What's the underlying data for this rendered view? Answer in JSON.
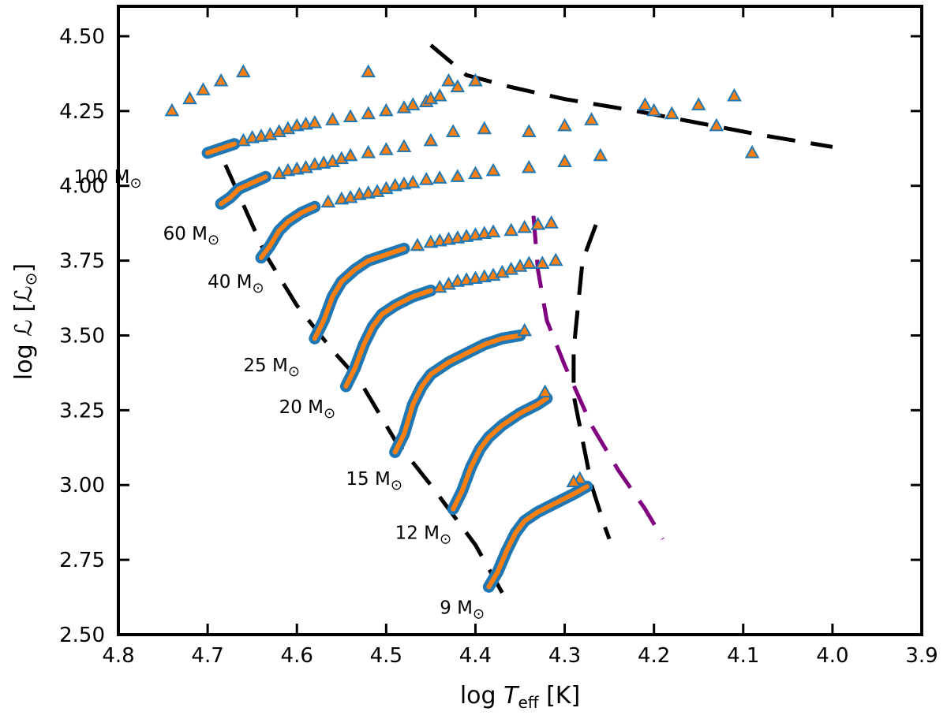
{
  "chart_data": {
    "type": "scatter",
    "title": "",
    "xlabel": {
      "main": "log ",
      "var": "T",
      "sub": "eff",
      "unit": " [K]"
    },
    "ylabel": {
      "main": "log ",
      "var": "ℒ",
      "unit_open": " [",
      "unit_var": "ℒ",
      "sub": "⊙",
      "unit_close": "]"
    },
    "xlim": [
      4.8,
      3.9
    ],
    "ylim": [
      2.5,
      4.6
    ],
    "x_ticks": [
      4.8,
      4.7,
      4.6,
      4.5,
      4.4,
      4.3,
      4.2,
      4.1,
      4.0,
      3.9
    ],
    "x_tick_labels": [
      "4.8",
      "4.7",
      "4.6",
      "4.5",
      "4.4",
      "4.3",
      "4.2",
      "4.1",
      "4.0",
      "3.9"
    ],
    "y_ticks": [
      2.5,
      2.75,
      3.0,
      3.25,
      3.5,
      3.75,
      4.0,
      4.25,
      4.5
    ],
    "y_tick_labels": [
      "2.50",
      "2.75",
      "3.00",
      "3.25",
      "3.50",
      "3.75",
      "4.00",
      "4.25",
      "4.50"
    ],
    "grid": false,
    "legend": "none",
    "colors": {
      "track_blue": "#1f77b4",
      "track_orange": "#ff7f0e",
      "boundary_black": "#000000",
      "boundary_purple": "#800080"
    },
    "tracks": [
      {
        "label": "9 M",
        "label_sub": "⊙",
        "dense": [
          [
            4.385,
            2.66
          ],
          [
            4.375,
            2.71
          ],
          [
            4.365,
            2.78
          ],
          [
            4.355,
            2.84
          ],
          [
            4.345,
            2.88
          ],
          [
            4.33,
            2.91
          ],
          [
            4.31,
            2.94
          ],
          [
            4.29,
            2.97
          ],
          [
            4.275,
            2.995
          ]
        ],
        "sparse": [
          [
            4.283,
            3.02
          ],
          [
            4.29,
            3.01
          ]
        ],
        "label_pos": [
          4.44,
          2.57
        ]
      },
      {
        "label": "12 M",
        "label_sub": "⊙",
        "dense": [
          [
            4.425,
            2.92
          ],
          [
            4.415,
            2.98
          ],
          [
            4.405,
            3.06
          ],
          [
            4.395,
            3.12
          ],
          [
            4.385,
            3.16
          ],
          [
            4.37,
            3.2
          ],
          [
            4.35,
            3.24
          ],
          [
            4.33,
            3.27
          ],
          [
            4.32,
            3.29
          ]
        ],
        "sparse": [
          [
            4.322,
            3.31
          ]
        ],
        "label_pos": [
          4.49,
          2.82
        ]
      },
      {
        "label": "15 M",
        "label_sub": "⊙",
        "dense": [
          [
            4.49,
            3.11
          ],
          [
            4.48,
            3.17
          ],
          [
            4.47,
            3.27
          ],
          [
            4.46,
            3.33
          ],
          [
            4.45,
            3.37
          ],
          [
            4.43,
            3.41
          ],
          [
            4.41,
            3.44
          ],
          [
            4.39,
            3.47
          ],
          [
            4.37,
            3.49
          ],
          [
            4.35,
            3.5
          ]
        ],
        "sparse": [
          [
            4.345,
            3.515
          ]
        ],
        "label_pos": [
          4.545,
          3.0
        ]
      },
      {
        "label": "20 M",
        "label_sub": "⊙",
        "dense": [
          [
            4.545,
            3.33
          ],
          [
            4.535,
            3.39
          ],
          [
            4.525,
            3.47
          ],
          [
            4.515,
            3.53
          ],
          [
            4.505,
            3.57
          ],
          [
            4.49,
            3.6
          ],
          [
            4.47,
            3.63
          ],
          [
            4.45,
            3.65
          ]
        ],
        "sparse": [
          [
            4.44,
            3.66
          ],
          [
            4.43,
            3.67
          ],
          [
            4.42,
            3.68
          ],
          [
            4.41,
            3.685
          ],
          [
            4.4,
            3.69
          ],
          [
            4.39,
            3.695
          ],
          [
            4.38,
            3.7
          ],
          [
            4.37,
            3.71
          ],
          [
            4.36,
            3.72
          ],
          [
            4.35,
            3.73
          ],
          [
            4.34,
            3.74
          ],
          [
            4.325,
            3.74
          ],
          [
            4.31,
            3.75
          ]
        ],
        "label_pos": [
          4.62,
          3.24
        ]
      },
      {
        "label": "25 M",
        "label_sub": "⊙",
        "dense": [
          [
            4.58,
            3.49
          ],
          [
            4.57,
            3.55
          ],
          [
            4.56,
            3.63
          ],
          [
            4.55,
            3.68
          ],
          [
            4.535,
            3.72
          ],
          [
            4.52,
            3.75
          ],
          [
            4.5,
            3.77
          ],
          [
            4.48,
            3.79
          ]
        ],
        "sparse": [
          [
            4.465,
            3.8
          ],
          [
            4.45,
            3.81
          ],
          [
            4.44,
            3.815
          ],
          [
            4.43,
            3.82
          ],
          [
            4.42,
            3.825
          ],
          [
            4.41,
            3.83
          ],
          [
            4.4,
            3.835
          ],
          [
            4.39,
            3.84
          ],
          [
            4.38,
            3.845
          ],
          [
            4.36,
            3.85
          ],
          [
            4.345,
            3.86
          ],
          [
            4.33,
            3.87
          ],
          [
            4.315,
            3.875
          ]
        ],
        "label_pos": [
          4.66,
          3.38
        ]
      },
      {
        "label": "40 M",
        "label_sub": "⊙",
        "dense": [
          [
            4.64,
            3.76
          ],
          [
            4.63,
            3.8
          ],
          [
            4.62,
            3.85
          ],
          [
            4.61,
            3.88
          ],
          [
            4.595,
            3.91
          ],
          [
            4.58,
            3.93
          ]
        ],
        "sparse": [
          [
            4.565,
            3.945
          ],
          [
            4.55,
            3.955
          ],
          [
            4.54,
            3.96
          ],
          [
            4.53,
            3.97
          ],
          [
            4.52,
            3.975
          ],
          [
            4.51,
            3.98
          ],
          [
            4.5,
            3.99
          ],
          [
            4.49,
            4.0
          ],
          [
            4.48,
            4.005
          ],
          [
            4.47,
            4.01
          ],
          [
            4.455,
            4.02
          ],
          [
            4.44,
            4.025
          ],
          [
            4.42,
            4.03
          ],
          [
            4.4,
            4.04
          ],
          [
            4.38,
            4.05
          ],
          [
            4.34,
            4.06
          ],
          [
            4.3,
            4.08
          ]
        ],
        "label_pos": [
          4.7,
          3.66
        ]
      },
      {
        "label": "60 M",
        "label_sub": "⊙",
        "dense": [
          [
            4.685,
            3.94
          ],
          [
            4.675,
            3.96
          ],
          [
            4.665,
            3.99
          ],
          [
            4.65,
            4.01
          ],
          [
            4.635,
            4.03
          ]
        ],
        "sparse": [
          [
            4.62,
            4.04
          ],
          [
            4.61,
            4.05
          ],
          [
            4.6,
            4.055
          ],
          [
            4.59,
            4.06
          ],
          [
            4.58,
            4.07
          ],
          [
            4.57,
            4.075
          ],
          [
            4.56,
            4.08
          ],
          [
            4.55,
            4.09
          ],
          [
            4.54,
            4.1
          ],
          [
            4.52,
            4.11
          ],
          [
            4.5,
            4.12
          ],
          [
            4.48,
            4.13
          ],
          [
            4.45,
            4.15
          ],
          [
            4.425,
            4.18
          ],
          [
            4.39,
            4.19
          ],
          [
            4.34,
            4.18
          ],
          [
            4.3,
            4.2
          ],
          [
            4.26,
            4.1
          ],
          [
            4.18,
            4.24
          ],
          [
            4.13,
            4.2
          ],
          [
            4.09,
            4.11
          ]
        ],
        "label_pos": [
          4.75,
          3.82
        ]
      },
      {
        "label": "100 M",
        "label_sub": "⊙",
        "dense": [
          [
            4.7,
            4.11
          ],
          [
            4.69,
            4.12
          ],
          [
            4.68,
            4.13
          ],
          [
            4.67,
            4.14
          ]
        ],
        "sparse": [
          [
            4.66,
            4.15
          ],
          [
            4.65,
            4.16
          ],
          [
            4.64,
            4.165
          ],
          [
            4.63,
            4.17
          ],
          [
            4.62,
            4.18
          ],
          [
            4.61,
            4.19
          ],
          [
            4.6,
            4.2
          ],
          [
            4.59,
            4.205
          ],
          [
            4.58,
            4.21
          ],
          [
            4.56,
            4.22
          ],
          [
            4.54,
            4.23
          ],
          [
            4.52,
            4.24
          ],
          [
            4.5,
            4.25
          ],
          [
            4.48,
            4.26
          ],
          [
            4.47,
            4.27
          ],
          [
            4.455,
            4.28
          ],
          [
            4.45,
            4.29
          ],
          [
            4.44,
            4.3
          ],
          [
            4.42,
            4.33
          ],
          [
            4.4,
            4.35
          ]
        ],
        "label_pos": [
          4.85,
          4.01
        ]
      }
    ],
    "extra_points": [
      [
        4.74,
        4.25
      ],
      [
        4.72,
        4.29
      ],
      [
        4.705,
        4.32
      ],
      [
        4.685,
        4.35
      ],
      [
        4.66,
        4.38
      ],
      [
        4.52,
        4.38
      ],
      [
        4.43,
        4.35
      ],
      [
        4.2,
        4.25
      ],
      [
        4.15,
        4.27
      ],
      [
        4.11,
        4.3
      ],
      [
        4.27,
        4.22
      ],
      [
        4.21,
        4.27
      ]
    ],
    "boundary_lines": [
      {
        "name": "zams-line",
        "color": "#000000",
        "points": [
          [
            4.68,
            4.07
          ],
          [
            4.665,
            3.97
          ],
          [
            4.65,
            3.87
          ],
          [
            4.635,
            3.77
          ],
          [
            4.6,
            3.6
          ],
          [
            4.56,
            3.45
          ],
          [
            4.53,
            3.35
          ],
          [
            4.49,
            3.15
          ],
          [
            4.45,
            3.0
          ],
          [
            4.4,
            2.8
          ],
          [
            4.37,
            2.64
          ]
        ]
      },
      {
        "name": "upper-boundary-line",
        "color": "#000000",
        "points": [
          [
            4.45,
            4.47
          ],
          [
            4.41,
            4.37
          ],
          [
            4.36,
            4.33
          ],
          [
            4.3,
            4.29
          ],
          [
            4.22,
            4.25
          ],
          [
            4.15,
            4.21
          ],
          [
            4.08,
            4.17
          ],
          [
            4.0,
            4.13
          ]
        ]
      },
      {
        "name": "black-bending-line",
        "color": "#000000",
        "points": [
          [
            4.265,
            3.87
          ],
          [
            4.28,
            3.75
          ],
          [
            4.285,
            3.6
          ],
          [
            4.29,
            3.45
          ],
          [
            4.29,
            3.3
          ],
          [
            4.28,
            3.15
          ],
          [
            4.27,
            3.0
          ],
          [
            4.255,
            2.86
          ],
          [
            4.25,
            2.82
          ]
        ]
      },
      {
        "name": "purple-boundary-line",
        "color": "#800080",
        "points": [
          [
            4.335,
            3.9
          ],
          [
            4.33,
            3.72
          ],
          [
            4.32,
            3.55
          ],
          [
            4.3,
            3.4
          ],
          [
            4.27,
            3.2
          ],
          [
            4.24,
            3.05
          ],
          [
            4.21,
            2.92
          ],
          [
            4.19,
            2.82
          ]
        ]
      }
    ]
  }
}
